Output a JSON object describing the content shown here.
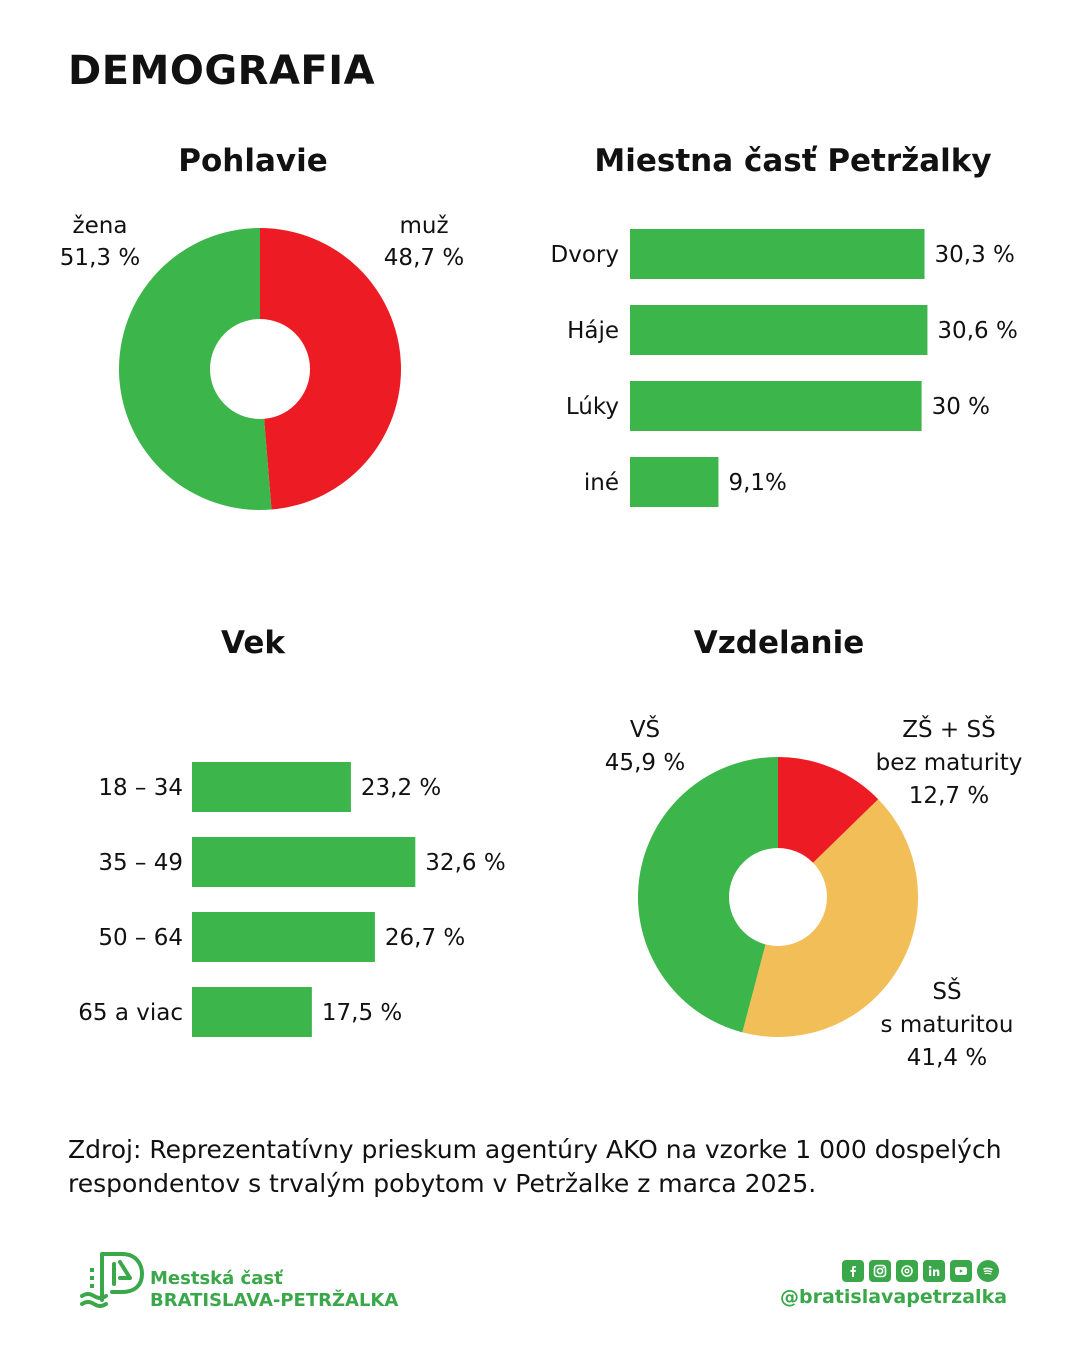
{
  "page": {
    "title": "DEMOGRAFIA"
  },
  "colors": {
    "green": "#3cb54a",
    "red": "#ed1c24",
    "yellow": "#f2be57",
    "brand": "#3aa84a"
  },
  "chart_data": [
    {
      "type": "pie",
      "title": "Pohlavie",
      "slices": [
        {
          "label": "muž",
          "value": 48.7,
          "value_label": "48,7 %",
          "color": "#ed1c24"
        },
        {
          "label": "žena",
          "value": 51.3,
          "value_label": "51,3 %",
          "color": "#3cb54a"
        }
      ]
    },
    {
      "type": "bar",
      "orientation": "horizontal",
      "title": "Miestna časť Petržalky",
      "categories": [
        "Dvory",
        "Háje",
        "Lúky",
        "iné"
      ],
      "values": [
        30.3,
        30.6,
        30,
        9.1
      ],
      "value_labels": [
        "30,3 %",
        "30,6 %",
        "30 %",
        "9,1%"
      ]
    },
    {
      "type": "bar",
      "orientation": "horizontal",
      "title": "Vek",
      "categories": [
        "18 – 34",
        "35 – 49",
        "50 – 64",
        "65 a viac"
      ],
      "values": [
        23.2,
        32.6,
        26.7,
        17.5
      ],
      "value_labels": [
        "23,2 %",
        "32,6 %",
        "26,7 %",
        "17,5 %"
      ]
    },
    {
      "type": "pie",
      "title": "Vzdelanie",
      "slices": [
        {
          "label": "ZŠ + SŠ bez maturity",
          "label_lines": [
            "ZŠ + SŠ",
            "bez maturity"
          ],
          "value": 12.7,
          "value_label": "12,7 %",
          "color": "#ed1c24"
        },
        {
          "label": "SŠ s maturitou",
          "label_lines": [
            "SŠ",
            "s maturitou"
          ],
          "value": 41.4,
          "value_label": "41,4 %",
          "color": "#f2be57"
        },
        {
          "label": "VŠ",
          "label_lines": [
            "VŠ"
          ],
          "value": 45.9,
          "value_label": "45,9 %",
          "color": "#3cb54a"
        }
      ]
    }
  ],
  "source": {
    "line1": "Zdroj: Reprezentatívny prieskum agentúry AKO na vzorke 1 000 dospelých",
    "line2": "respondentov s trvalým pobytom v Petržalke z marca 2025."
  },
  "footer": {
    "brand_line1": "Mestská časť",
    "brand_line2": "BRATISLAVA-PETRŽALKA",
    "handle": "@bratislavapetrzalka",
    "social_icons": [
      "facebook-icon",
      "instagram-icon",
      "threads-icon",
      "linkedin-icon",
      "youtube-icon",
      "spotify-icon"
    ]
  }
}
